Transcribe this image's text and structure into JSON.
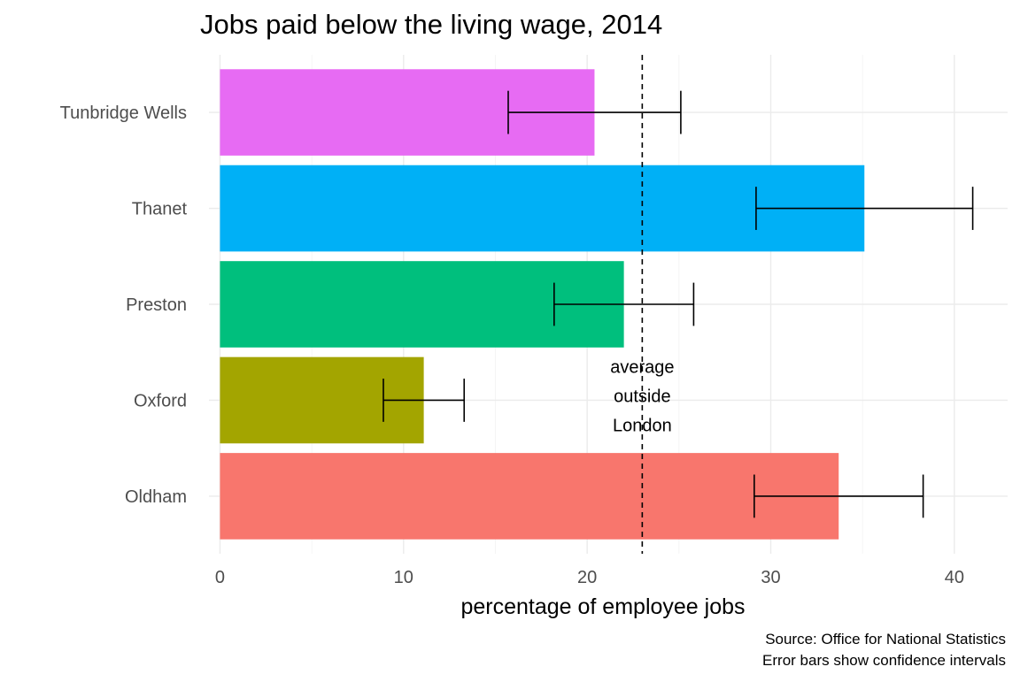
{
  "chart_data": {
    "type": "bar",
    "orientation": "horizontal",
    "title": "Jobs paid below the living wage, 2014",
    "xlabel": "percentage of employee jobs",
    "ylabel": "",
    "categories": [
      "Oldham",
      "Oxford",
      "Preston",
      "Thanet",
      "Tunbridge Wells"
    ],
    "values": [
      33.7,
      11.1,
      22.0,
      35.1,
      20.4
    ],
    "error_low": [
      29.1,
      8.9,
      18.2,
      29.2,
      15.7
    ],
    "error_high": [
      38.3,
      13.3,
      25.8,
      41.0,
      25.1
    ],
    "colors": [
      "#F8766D",
      "#A3A500",
      "#00BF7D",
      "#00B0F6",
      "#E76BF3"
    ],
    "xlim": [
      -0.6,
      42.9
    ],
    "xticks": [
      0,
      10,
      20,
      30,
      40
    ],
    "reference_line": {
      "value": 23.0,
      "style": "dashed",
      "label": [
        "average",
        "outside",
        "London"
      ]
    },
    "grid": true,
    "caption": [
      "Source: Office for National Statistics",
      "Error bars show confidence intervals"
    ]
  }
}
